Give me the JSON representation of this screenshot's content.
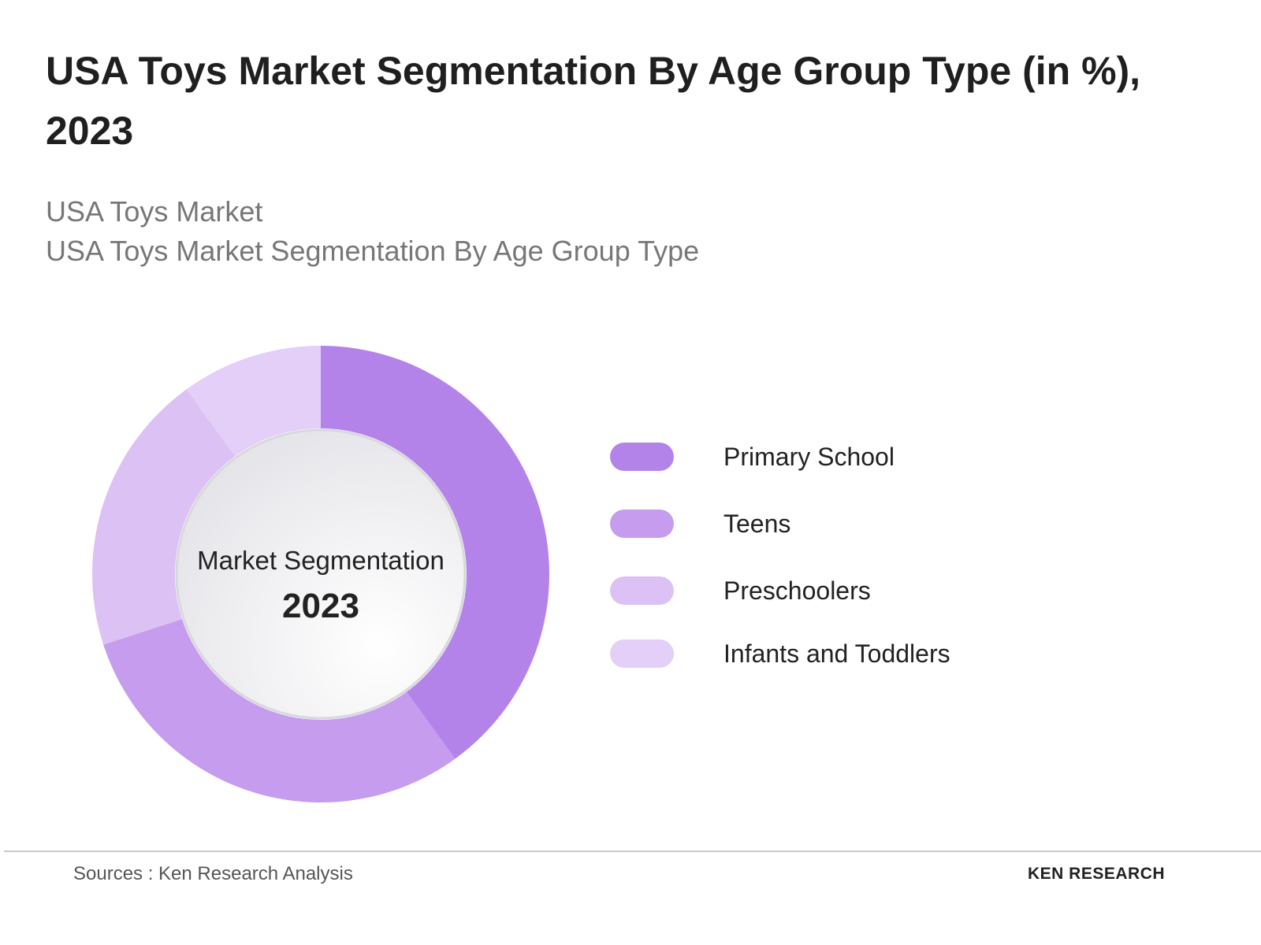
{
  "chart_data": {
    "type": "donut",
    "title": "USA Toys Market Segmentation By Age Group Type (in %), 2023",
    "subtitle": [
      "USA Toys Market",
      "USA Toys Market Segmentation By Age Group Type"
    ],
    "center_label": "Market Segmentation",
    "center_value": "2023",
    "categories": [
      "Primary School",
      "Teens",
      "Preschoolers",
      "Infants and Toddlers"
    ],
    "values": [
      40,
      30,
      20,
      10
    ],
    "colors": [
      "#b383ea",
      "#c59cee",
      "#dcc1f5",
      "#e3cff7"
    ]
  },
  "source": "Sources : Ken Research Analysis",
  "logo": "KEN RESEARCH"
}
